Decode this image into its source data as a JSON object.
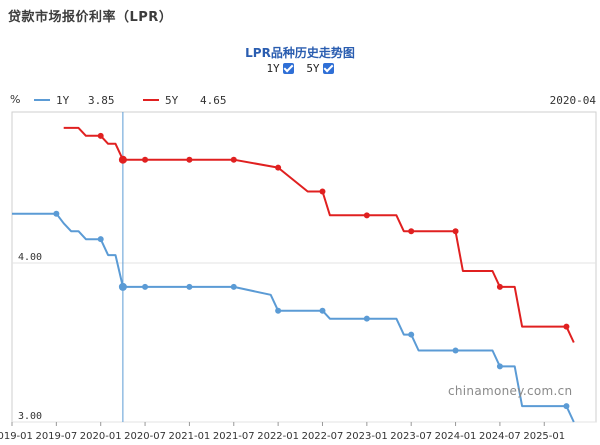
{
  "page": {
    "title": "贷款市场报价利率（LPR）"
  },
  "controls": {
    "toggle_1y": "1Y",
    "toggle_5y": "5Y"
  },
  "watermark": "chinamoney.com.cn",
  "chart_data": {
    "type": "line",
    "title": "LPR品种历史走势图",
    "unit_label": "%",
    "corner_label": "2020-04",
    "ylim": [
      3.0,
      4.95
    ],
    "y_ticks": [
      {
        "value": 4.0,
        "label": "4.00"
      },
      {
        "value": 3.0,
        "label": "3.00"
      }
    ],
    "x_ticks": [
      "2019-01",
      "2019-07",
      "2020-01",
      "2020-07",
      "2021-01",
      "2021-07",
      "2022-01",
      "2022-07",
      "2023-01",
      "2023-07",
      "2024-01",
      "2024-07",
      "2025-01"
    ],
    "x_range": [
      "2019-01",
      "2025-08"
    ],
    "cursor_date": "2020-04",
    "legend": [
      {
        "name": "1Y",
        "value": "3.85",
        "color": "#5b9bd5"
      },
      {
        "name": "5Y",
        "value": "4.65",
        "color": "#e02020"
      }
    ],
    "series": [
      {
        "name": "1Y",
        "color": "#5b9bd5",
        "points": [
          [
            "2019-01",
            4.31
          ],
          [
            "2019-07",
            4.31
          ],
          [
            "2019-08",
            4.25
          ],
          [
            "2019-09",
            4.2
          ],
          [
            "2019-10",
            4.2
          ],
          [
            "2019-11",
            4.15
          ],
          [
            "2020-01",
            4.15
          ],
          [
            "2020-02",
            4.05
          ],
          [
            "2020-03",
            4.05
          ],
          [
            "2020-04",
            3.85
          ],
          [
            "2020-07",
            3.85
          ],
          [
            "2021-01",
            3.85
          ],
          [
            "2021-07",
            3.85
          ],
          [
            "2021-12",
            3.8
          ],
          [
            "2022-01",
            3.7
          ],
          [
            "2022-07",
            3.7
          ],
          [
            "2022-08",
            3.65
          ],
          [
            "2023-01",
            3.65
          ],
          [
            "2023-05",
            3.65
          ],
          [
            "2023-06",
            3.55
          ],
          [
            "2023-07",
            3.55
          ],
          [
            "2023-08",
            3.45
          ],
          [
            "2024-01",
            3.45
          ],
          [
            "2024-06",
            3.45
          ],
          [
            "2024-07",
            3.35
          ],
          [
            "2024-09",
            3.35
          ],
          [
            "2024-10",
            3.1
          ],
          [
            "2025-01",
            3.1
          ],
          [
            "2025-04",
            3.1
          ],
          [
            "2025-05",
            3.0
          ]
        ],
        "markers": [
          "2019-07",
          "2020-01",
          "2020-04",
          "2020-07",
          "2021-01",
          "2021-07",
          "2022-01",
          "2022-07",
          "2023-01",
          "2023-07",
          "2024-01",
          "2024-07",
          "2025-04"
        ]
      },
      {
        "name": "5Y",
        "color": "#e02020",
        "points": [
          [
            "2019-08",
            4.85
          ],
          [
            "2019-10",
            4.85
          ],
          [
            "2019-11",
            4.8
          ],
          [
            "2020-01",
            4.8
          ],
          [
            "2020-02",
            4.75
          ],
          [
            "2020-03",
            4.75
          ],
          [
            "2020-04",
            4.65
          ],
          [
            "2020-07",
            4.65
          ],
          [
            "2021-01",
            4.65
          ],
          [
            "2021-07",
            4.65
          ],
          [
            "2022-01",
            4.6
          ],
          [
            "2022-05",
            4.45
          ],
          [
            "2022-07",
            4.45
          ],
          [
            "2022-08",
            4.3
          ],
          [
            "2023-01",
            4.3
          ],
          [
            "2023-05",
            4.3
          ],
          [
            "2023-06",
            4.2
          ],
          [
            "2023-07",
            4.2
          ],
          [
            "2024-01",
            4.2
          ],
          [
            "2024-02",
            3.95
          ],
          [
            "2024-06",
            3.95
          ],
          [
            "2024-07",
            3.85
          ],
          [
            "2024-09",
            3.85
          ],
          [
            "2024-10",
            3.6
          ],
          [
            "2025-01",
            3.6
          ],
          [
            "2025-04",
            3.6
          ],
          [
            "2025-05",
            3.5
          ]
        ],
        "markers": [
          "2020-01",
          "2020-04",
          "2020-07",
          "2021-01",
          "2021-07",
          "2022-01",
          "2022-07",
          "2023-01",
          "2023-07",
          "2024-01",
          "2024-07",
          "2025-04"
        ]
      }
    ]
  }
}
